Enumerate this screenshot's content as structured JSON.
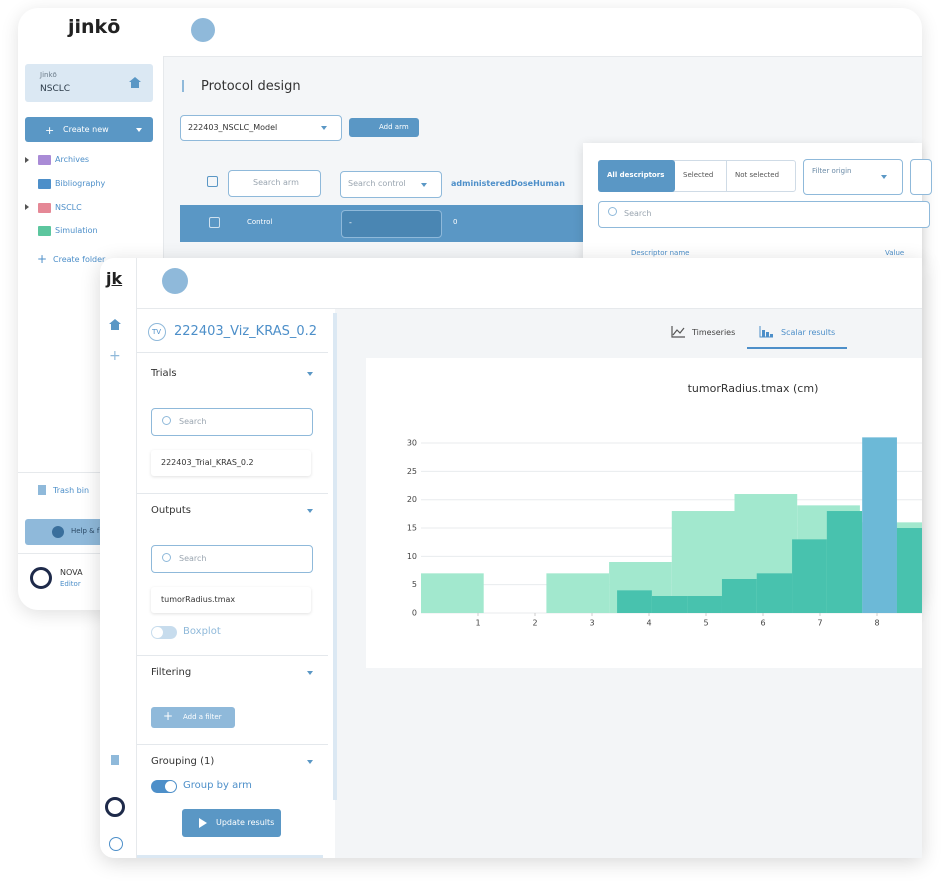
{
  "back_window": {
    "logo": "jinkō",
    "breadcrumb": {
      "workspace": "Jinkō",
      "project": "NSCLC"
    },
    "create_new": "Create new",
    "folders": [
      "Archives",
      "Bibliography",
      "NSCLC",
      "Simulation"
    ],
    "create_folder": "Create folder",
    "trash": "Trash bin",
    "help": "Help & f",
    "user": {
      "name": "NOVA",
      "role": "Editor"
    },
    "page_title": "Protocol design",
    "model_select": "222403_NSCLC_Model",
    "add_arm": "Add arm",
    "search_arm": "Search arm",
    "search_control": "Search control",
    "column": "administeredDoseHuman",
    "row": {
      "name": "Control",
      "control": "-",
      "value": "0"
    }
  },
  "descriptors_panel": {
    "tabs": [
      "All descriptors",
      "Selected",
      "Not selected"
    ],
    "filter": "Filter origin",
    "search": "Search",
    "columns": [
      "Descriptor name",
      "Value"
    ]
  },
  "front_window": {
    "logo": "jk",
    "project": {
      "badge": "TV",
      "title": "222403_Viz_KRAS_0.2"
    },
    "trials": {
      "title": "Trials",
      "search": "Search",
      "item": "222403_Trial_KRAS_0.2"
    },
    "outputs": {
      "title": "Outputs",
      "search": "Search",
      "item": "tumorRadius.tmax",
      "toggle": "Boxplot"
    },
    "filtering": {
      "title": "Filtering",
      "button": "Add a filter"
    },
    "grouping": {
      "title": "Grouping (1)",
      "toggle": "Group by arm"
    },
    "update": "Update results",
    "tabs": [
      "Timeseries",
      "Scalar results"
    ]
  },
  "chart_data": {
    "type": "histogram",
    "title": "tumorRadius.tmax (cm)",
    "xlim": [
      0,
      8.8
    ],
    "ylim": [
      0,
      32
    ],
    "xticks": [
      1,
      2,
      3,
      4,
      5,
      6,
      7,
      8
    ],
    "yticks": [
      0,
      5,
      10,
      15,
      20,
      25,
      30
    ],
    "grid": true,
    "series": [
      {
        "bins": [
          0,
          1.1,
          2.2,
          3.3,
          4.4,
          5.5,
          6.6,
          7.7,
          8.8
        ],
        "values": [
          7,
          0,
          7,
          9,
          18,
          21,
          19,
          16
        ],
        "color": "#a2e8ce"
      },
      {
        "bins": [
          3.44,
          4.05,
          4.67,
          5.28,
          5.89,
          6.51,
          7.12,
          7.74,
          8.35,
          8.96
        ],
        "values": [
          4,
          3,
          3,
          6,
          7,
          13,
          18,
          31,
          15
        ],
        "color": "#48c2ae",
        "colors": [
          "#48c2ae",
          "#48c2ae",
          "#48c2ae",
          "#48c2ae",
          "#48c2ae",
          "#48c2ae",
          "#48c2ae",
          "#6cb9d7",
          "#48c2ae"
        ]
      }
    ]
  }
}
